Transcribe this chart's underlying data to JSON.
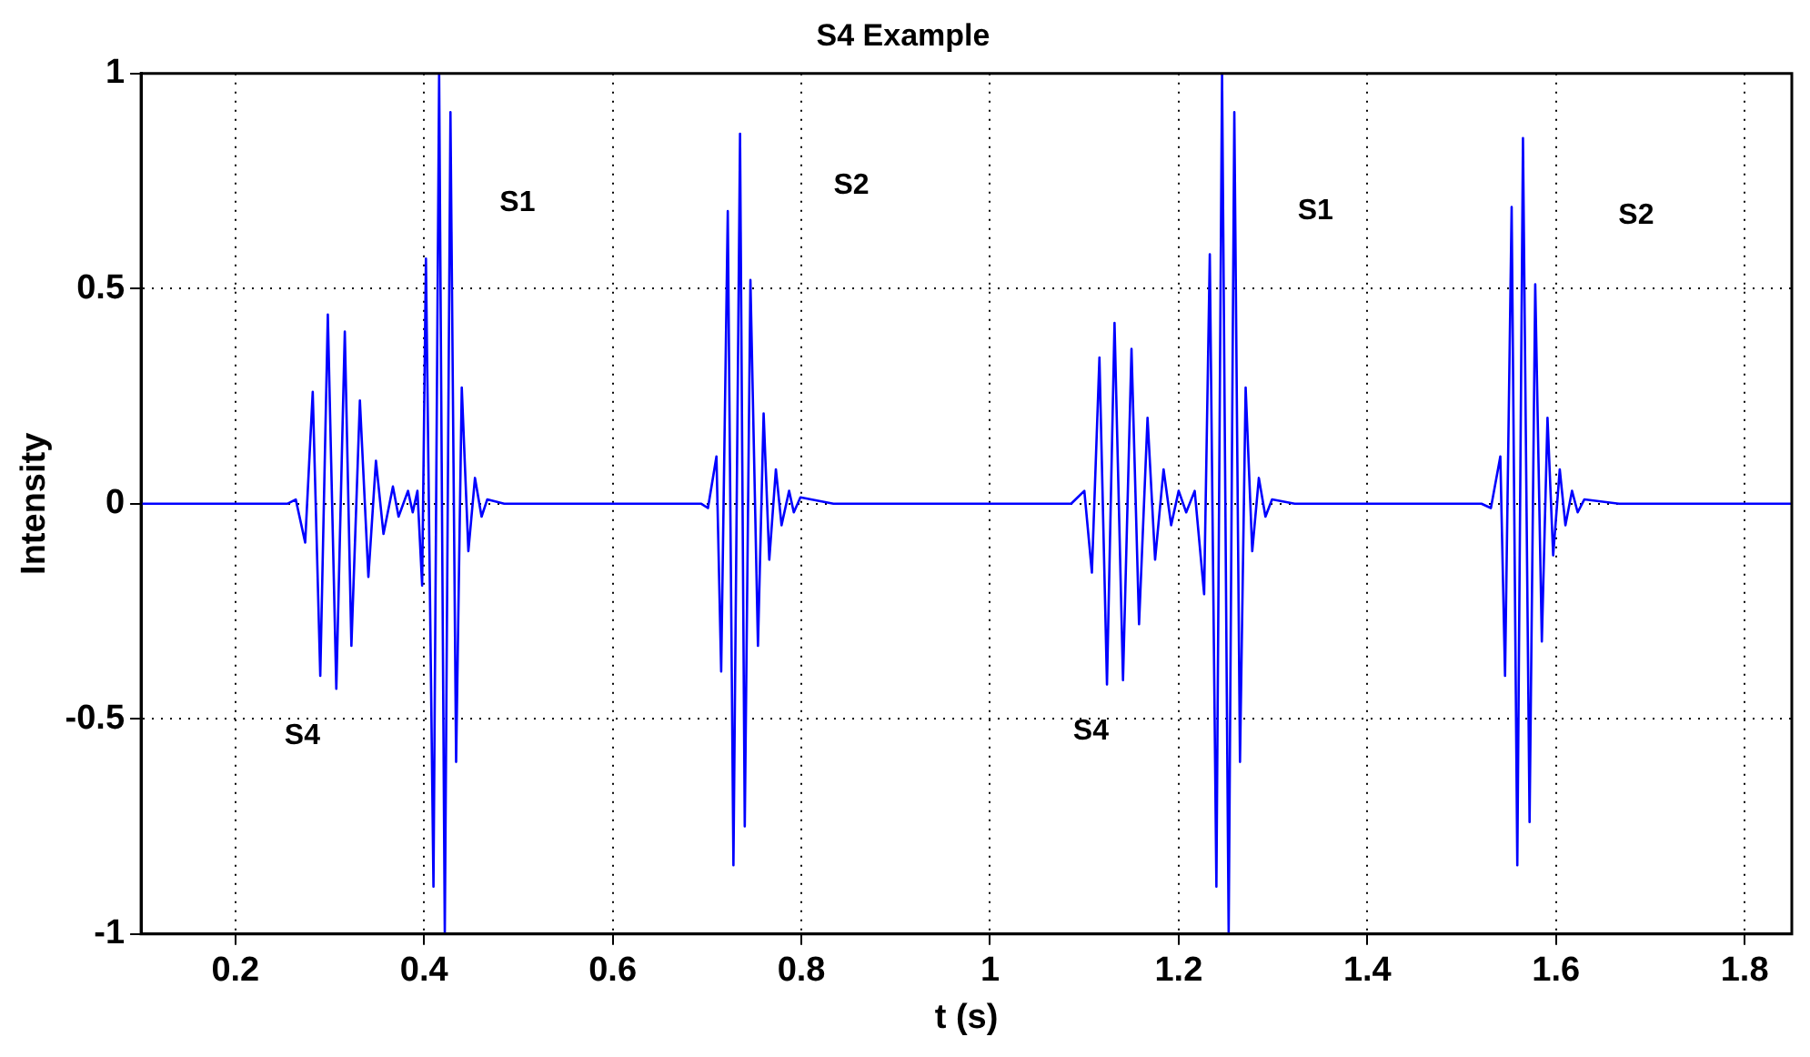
{
  "chart_data": {
    "type": "line",
    "title": "S4 Example",
    "xlabel": "t (s)",
    "ylabel": "Intensity",
    "xlim": [
      0.1,
      1.85
    ],
    "xticks": [
      0.2,
      0.4,
      0.6,
      0.8,
      1,
      1.2,
      1.4,
      1.6,
      1.8
    ],
    "ylim": [
      -1,
      1
    ],
    "yticks": [
      -1,
      -0.5,
      0,
      0.5,
      1
    ],
    "grid": true,
    "legend": false,
    "line_style": "solid",
    "annotations": [
      "S4",
      "S1",
      "S2",
      "S4",
      "S1",
      "S2"
    ],
    "series": [
      {
        "color": "#0000ff",
        "x": [
          0.1,
          0.255,
          0.264,
          0.274,
          0.282,
          0.29,
          0.298,
          0.307,
          0.316,
          0.323,
          0.332,
          0.341,
          0.349,
          0.357,
          0.367,
          0.373,
          0.383,
          0.388,
          0.393,
          0.398,
          0.402,
          0.41,
          0.416,
          0.422,
          0.428,
          0.434,
          0.44,
          0.447,
          0.454,
          0.461,
          0.467,
          0.485,
          0.694,
          0.701,
          0.71,
          0.715,
          0.722,
          0.728,
          0.735,
          0.74,
          0.746,
          0.754,
          0.76,
          0.766,
          0.773,
          0.779,
          0.787,
          0.792,
          0.799,
          0.834,
          1.086,
          1.1,
          1.108,
          1.116,
          1.124,
          1.132,
          1.141,
          1.15,
          1.158,
          1.167,
          1.175,
          1.184,
          1.192,
          1.2,
          1.208,
          1.217,
          1.227,
          1.233,
          1.24,
          1.246,
          1.253,
          1.259,
          1.265,
          1.271,
          1.278,
          1.285,
          1.292,
          1.299,
          1.323,
          1.521,
          1.531,
          1.541,
          1.546,
          1.553,
          1.559,
          1.565,
          1.572,
          1.578,
          1.585,
          1.591,
          1.597,
          1.604,
          1.61,
          1.617,
          1.623,
          1.63,
          1.667,
          1.85
        ],
        "values": [
          0,
          0,
          0.01,
          -0.09,
          0.26,
          -0.4,
          0.44,
          -0.43,
          0.4,
          -0.33,
          0.24,
          -0.17,
          0.1,
          -0.07,
          0.04,
          -0.03,
          0.03,
          -0.02,
          0.03,
          -0.19,
          0.57,
          -0.89,
          1,
          -1,
          0.91,
          -0.6,
          0.27,
          -0.11,
          0.06,
          -0.03,
          0.01,
          0,
          0,
          -0.01,
          0.11,
          -0.39,
          0.68,
          -0.84,
          0.86,
          -0.75,
          0.52,
          -0.33,
          0.21,
          -0.13,
          0.08,
          -0.05,
          0.03,
          -0.02,
          0.015,
          0,
          0,
          0.03,
          -0.16,
          0.34,
          -0.42,
          0.42,
          -0.41,
          0.36,
          -0.28,
          0.2,
          -0.13,
          0.08,
          -0.05,
          0.03,
          -0.02,
          0.03,
          -0.21,
          0.58,
          -0.89,
          1,
          -1,
          0.91,
          -0.6,
          0.27,
          -0.11,
          0.06,
          -0.03,
          0.01,
          0,
          0,
          -0.01,
          0.11,
          -0.4,
          0.69,
          -0.84,
          0.85,
          -0.74,
          0.51,
          -0.32,
          0.2,
          -0.12,
          0.08,
          -0.05,
          0.03,
          -0.02,
          0.01,
          0,
          0
        ]
      }
    ]
  }
}
